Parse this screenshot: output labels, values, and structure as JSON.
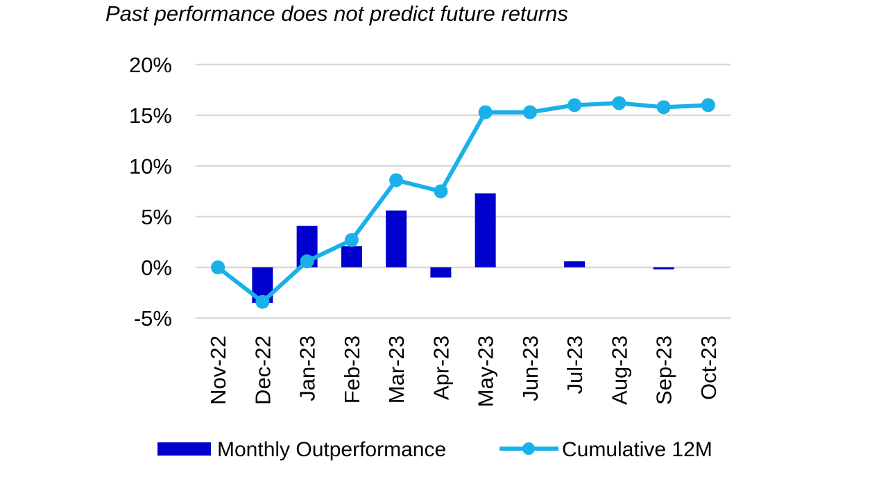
{
  "chart_data": {
    "type": "bar",
    "title": "Past performance does not predict future returns",
    "categories": [
      "Nov-22",
      "Dec-22",
      "Jan-23",
      "Feb-23",
      "Mar-23",
      "Apr-23",
      "May-23",
      "Jun-23",
      "Jul-23",
      "Aug-23",
      "Sep-23",
      "Oct-23"
    ],
    "series": [
      {
        "name": "Monthly Outperformance",
        "type": "bar",
        "color": "#0000CC",
        "values": [
          0.0,
          -3.5,
          4.1,
          2.1,
          5.6,
          -1.0,
          7.3,
          0.0,
          0.6,
          0.0,
          -0.2,
          0.0
        ]
      },
      {
        "name": "Cumulative 12M",
        "type": "line",
        "color": "#1AB0E8",
        "values": [
          0.0,
          -3.4,
          0.6,
          2.7,
          8.6,
          7.5,
          15.3,
          15.3,
          16.0,
          16.2,
          15.8,
          16.0
        ]
      }
    ],
    "ylim": [
      -5,
      20
    ],
    "yticks": [
      -5,
      0,
      5,
      10,
      15,
      20
    ],
    "ytick_labels": [
      "-5%",
      "0%",
      "5%",
      "10%",
      "15%",
      "20%"
    ],
    "xlabel": "",
    "ylabel": "",
    "grid": true,
    "legend": "bottom"
  }
}
